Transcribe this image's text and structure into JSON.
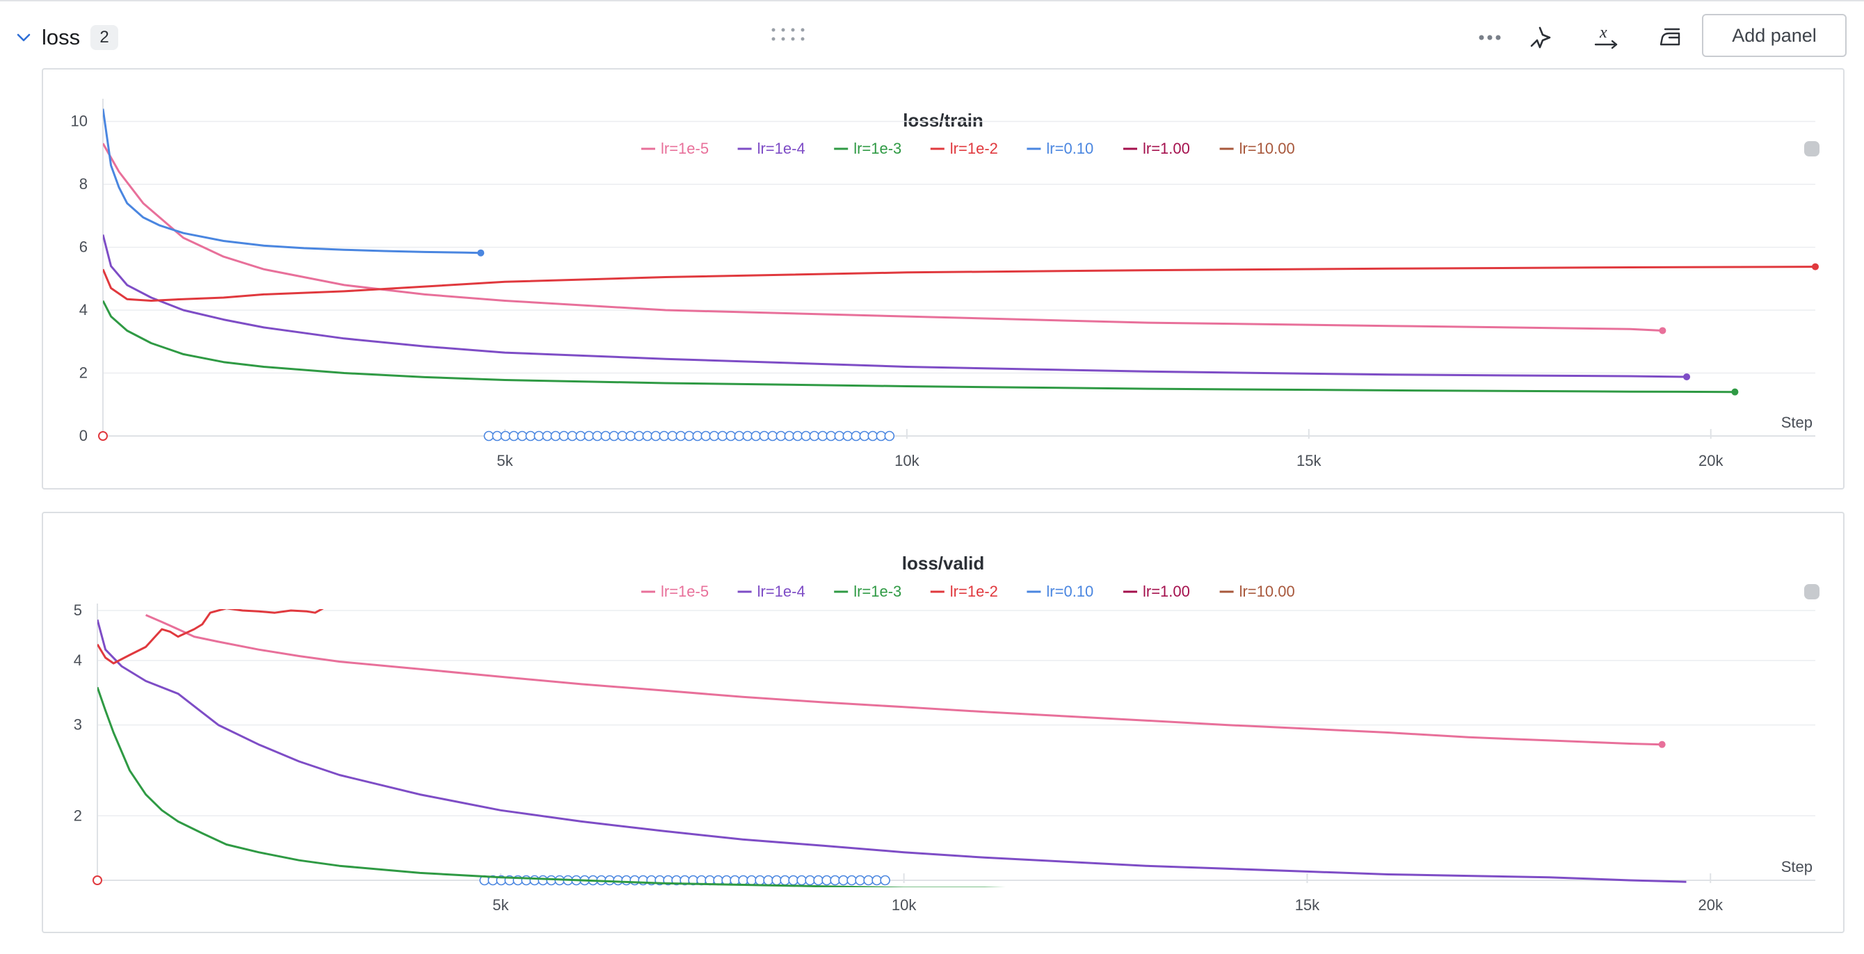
{
  "section": {
    "title": "loss",
    "count": "2",
    "add_panel_label": "Add panel",
    "icons": [
      "chevron-down-icon",
      "drag-handle-icon",
      "more-options-icon",
      "magic-wand-icon",
      "x-axis-icon",
      "clean-iron-icon"
    ]
  },
  "chart_data": [
    {
      "type": "line",
      "title": "loss/train",
      "xlabel": "Step",
      "ylabel": "",
      "xlim": [
        0,
        21300
      ],
      "ylim": [
        0,
        10.5
      ],
      "x_ticks": [
        {
          "value": 5000,
          "label": "5k"
        },
        {
          "value": 10000,
          "label": "10k"
        },
        {
          "value": 15000,
          "label": "15k"
        },
        {
          "value": 20000,
          "label": "20k"
        }
      ],
      "y_ticks": [
        {
          "value": 0,
          "label": "0"
        },
        {
          "value": 2,
          "label": "2"
        },
        {
          "value": 4,
          "label": "4"
        },
        {
          "value": 6,
          "label": "6"
        },
        {
          "value": 8,
          "label": "8"
        },
        {
          "value": 10,
          "label": "10"
        }
      ],
      "grid": true,
      "legend_position": "top-center",
      "series": [
        {
          "name": "lr=1e-5",
          "color": "#e8709a",
          "x": [
            0,
            200,
            500,
            1000,
            1500,
            2000,
            3000,
            4000,
            5000,
            7000,
            10000,
            13000,
            16000,
            19000,
            19400
          ],
          "y": [
            9.3,
            8.4,
            7.4,
            6.3,
            5.7,
            5.3,
            4.8,
            4.5,
            4.3,
            4.0,
            3.8,
            3.6,
            3.5,
            3.4,
            3.35
          ]
        },
        {
          "name": "lr=1e-4",
          "color": "#7e4dc6",
          "x": [
            0,
            100,
            300,
            600,
            1000,
            1500,
            2000,
            3000,
            4000,
            5000,
            7000,
            10000,
            13000,
            16000,
            19000,
            19700
          ],
          "y": [
            6.4,
            5.4,
            4.8,
            4.4,
            4.0,
            3.7,
            3.45,
            3.1,
            2.85,
            2.65,
            2.45,
            2.2,
            2.05,
            1.95,
            1.9,
            1.88
          ]
        },
        {
          "name": "lr=1e-3",
          "color": "#2f9a44",
          "x": [
            0,
            100,
            300,
            600,
            1000,
            1500,
            2000,
            3000,
            4000,
            5000,
            7000,
            10000,
            13000,
            16000,
            19000,
            20300
          ],
          "y": [
            4.3,
            3.8,
            3.35,
            2.95,
            2.6,
            2.35,
            2.2,
            2.0,
            1.87,
            1.78,
            1.68,
            1.58,
            1.5,
            1.45,
            1.41,
            1.4
          ]
        },
        {
          "name": "lr=1e-2",
          "color": "#e0393e",
          "x": [
            0,
            100,
            300,
            600,
            1000,
            1500,
            2000,
            3000,
            4000,
            5000,
            7000,
            10000,
            13000,
            16000,
            19000,
            21300
          ],
          "y": [
            5.3,
            4.7,
            4.35,
            4.3,
            4.35,
            4.4,
            4.5,
            4.6,
            4.75,
            4.9,
            5.05,
            5.2,
            5.27,
            5.32,
            5.36,
            5.38
          ]
        },
        {
          "name": "lr=0.10",
          "color": "#4a86e0",
          "x": [
            0,
            100,
            200,
            300,
            500,
            700,
            1000,
            1500,
            2000,
            2500,
            3000,
            3500,
            4000,
            4500,
            4700
          ],
          "y": [
            10.4,
            8.6,
            7.9,
            7.4,
            6.95,
            6.7,
            6.45,
            6.2,
            6.05,
            5.97,
            5.92,
            5.88,
            5.85,
            5.83,
            5.82
          ]
        },
        {
          "name": "lr=1.00",
          "color": "#a4104d",
          "x": [],
          "y": []
        },
        {
          "name": "lr=10.00",
          "color": "#a8583c",
          "x": [],
          "y": []
        }
      ]
    },
    {
      "type": "line",
      "title": "loss/valid",
      "xlabel": "Step",
      "ylabel": "",
      "xlim": [
        0,
        21300
      ],
      "ylim": [
        1.5,
        5
      ],
      "y_scale": "log",
      "x_ticks": [
        {
          "value": 5000,
          "label": "5k"
        },
        {
          "value": 10000,
          "label": "10k"
        },
        {
          "value": 15000,
          "label": "15k"
        },
        {
          "value": 20000,
          "label": "20k"
        }
      ],
      "y_ticks": [
        {
          "value": 2,
          "label": "2"
        },
        {
          "value": 3,
          "label": "3"
        },
        {
          "value": 4,
          "label": "4"
        },
        {
          "value": 5,
          "label": "5"
        }
      ],
      "grid": true,
      "legend_position": "top-center",
      "series": [
        {
          "name": "lr=1e-5",
          "color": "#e8709a",
          "x": [
            600,
            800,
            1000,
            1200,
            1500,
            2000,
            2500,
            3000,
            4000,
            5000,
            6000,
            7000,
            8000,
            9000,
            10000,
            11000,
            12000,
            13000,
            14000,
            15000,
            16000,
            17000,
            18000,
            19000,
            19400
          ],
          "y": [
            4.9,
            4.75,
            4.6,
            4.45,
            4.35,
            4.2,
            4.08,
            3.98,
            3.85,
            3.72,
            3.6,
            3.5,
            3.4,
            3.32,
            3.25,
            3.18,
            3.12,
            3.06,
            3.0,
            2.95,
            2.9,
            2.84,
            2.8,
            2.76,
            2.75
          ]
        },
        {
          "name": "lr=1e-4",
          "color": "#7e4dc6",
          "x": [
            0,
            100,
            300,
            600,
            1000,
            1500,
            2000,
            2500,
            3000,
            4000,
            5000,
            6000,
            7000,
            8000,
            9000,
            10000,
            11000,
            12000,
            13000,
            14000,
            15000,
            16000,
            17000,
            18000,
            19000,
            19700
          ],
          "y": [
            4.8,
            4.2,
            3.9,
            3.65,
            3.45,
            3.0,
            2.75,
            2.55,
            2.4,
            2.2,
            2.05,
            1.95,
            1.87,
            1.8,
            1.75,
            1.7,
            1.66,
            1.63,
            1.6,
            1.58,
            1.56,
            1.54,
            1.53,
            1.52,
            1.5,
            1.49
          ]
        },
        {
          "name": "lr=1e-3",
          "color": "#2f9a44",
          "x": [
            0,
            100,
            200,
            400,
            600,
            800,
            1000,
            1300,
            1600,
            2000,
            2500,
            3000,
            4000,
            5000,
            6000,
            7000,
            8000,
            9000,
            10000,
            11000,
            12000,
            13000,
            14000,
            15000,
            16000,
            17000,
            18000,
            19000,
            20000,
            20300
          ],
          "y": [
            3.55,
            3.2,
            2.9,
            2.45,
            2.2,
            2.05,
            1.95,
            1.85,
            1.76,
            1.7,
            1.64,
            1.6,
            1.55,
            1.52,
            1.5,
            1.48,
            1.47,
            1.46,
            1.45,
            1.45,
            1.44,
            1.44,
            1.43,
            1.43,
            1.43,
            1.42,
            1.42,
            1.42,
            1.42,
            1.42
          ]
        },
        {
          "name": "lr=1e-2",
          "color": "#e0393e",
          "x": [
            0,
            100,
            200,
            400,
            600,
            800,
            900,
            1000,
            1200,
            1300,
            1400,
            1600,
            1800,
            2000,
            2200,
            2400,
            2600,
            2700,
            2800
          ],
          "y": [
            4.3,
            4.05,
            3.95,
            4.1,
            4.25,
            4.6,
            4.55,
            4.45,
            4.6,
            4.7,
            4.95,
            5.05,
            5.0,
            4.98,
            4.95,
            5.0,
            4.98,
            4.95,
            5.05
          ]
        },
        {
          "name": "lr=0.10",
          "color": "#4a86e0",
          "x": [],
          "y": []
        },
        {
          "name": "lr=1.00",
          "color": "#a4104d",
          "x": [],
          "y": []
        },
        {
          "name": "lr=10.00",
          "color": "#a8583c",
          "x": [],
          "y": []
        }
      ]
    }
  ]
}
